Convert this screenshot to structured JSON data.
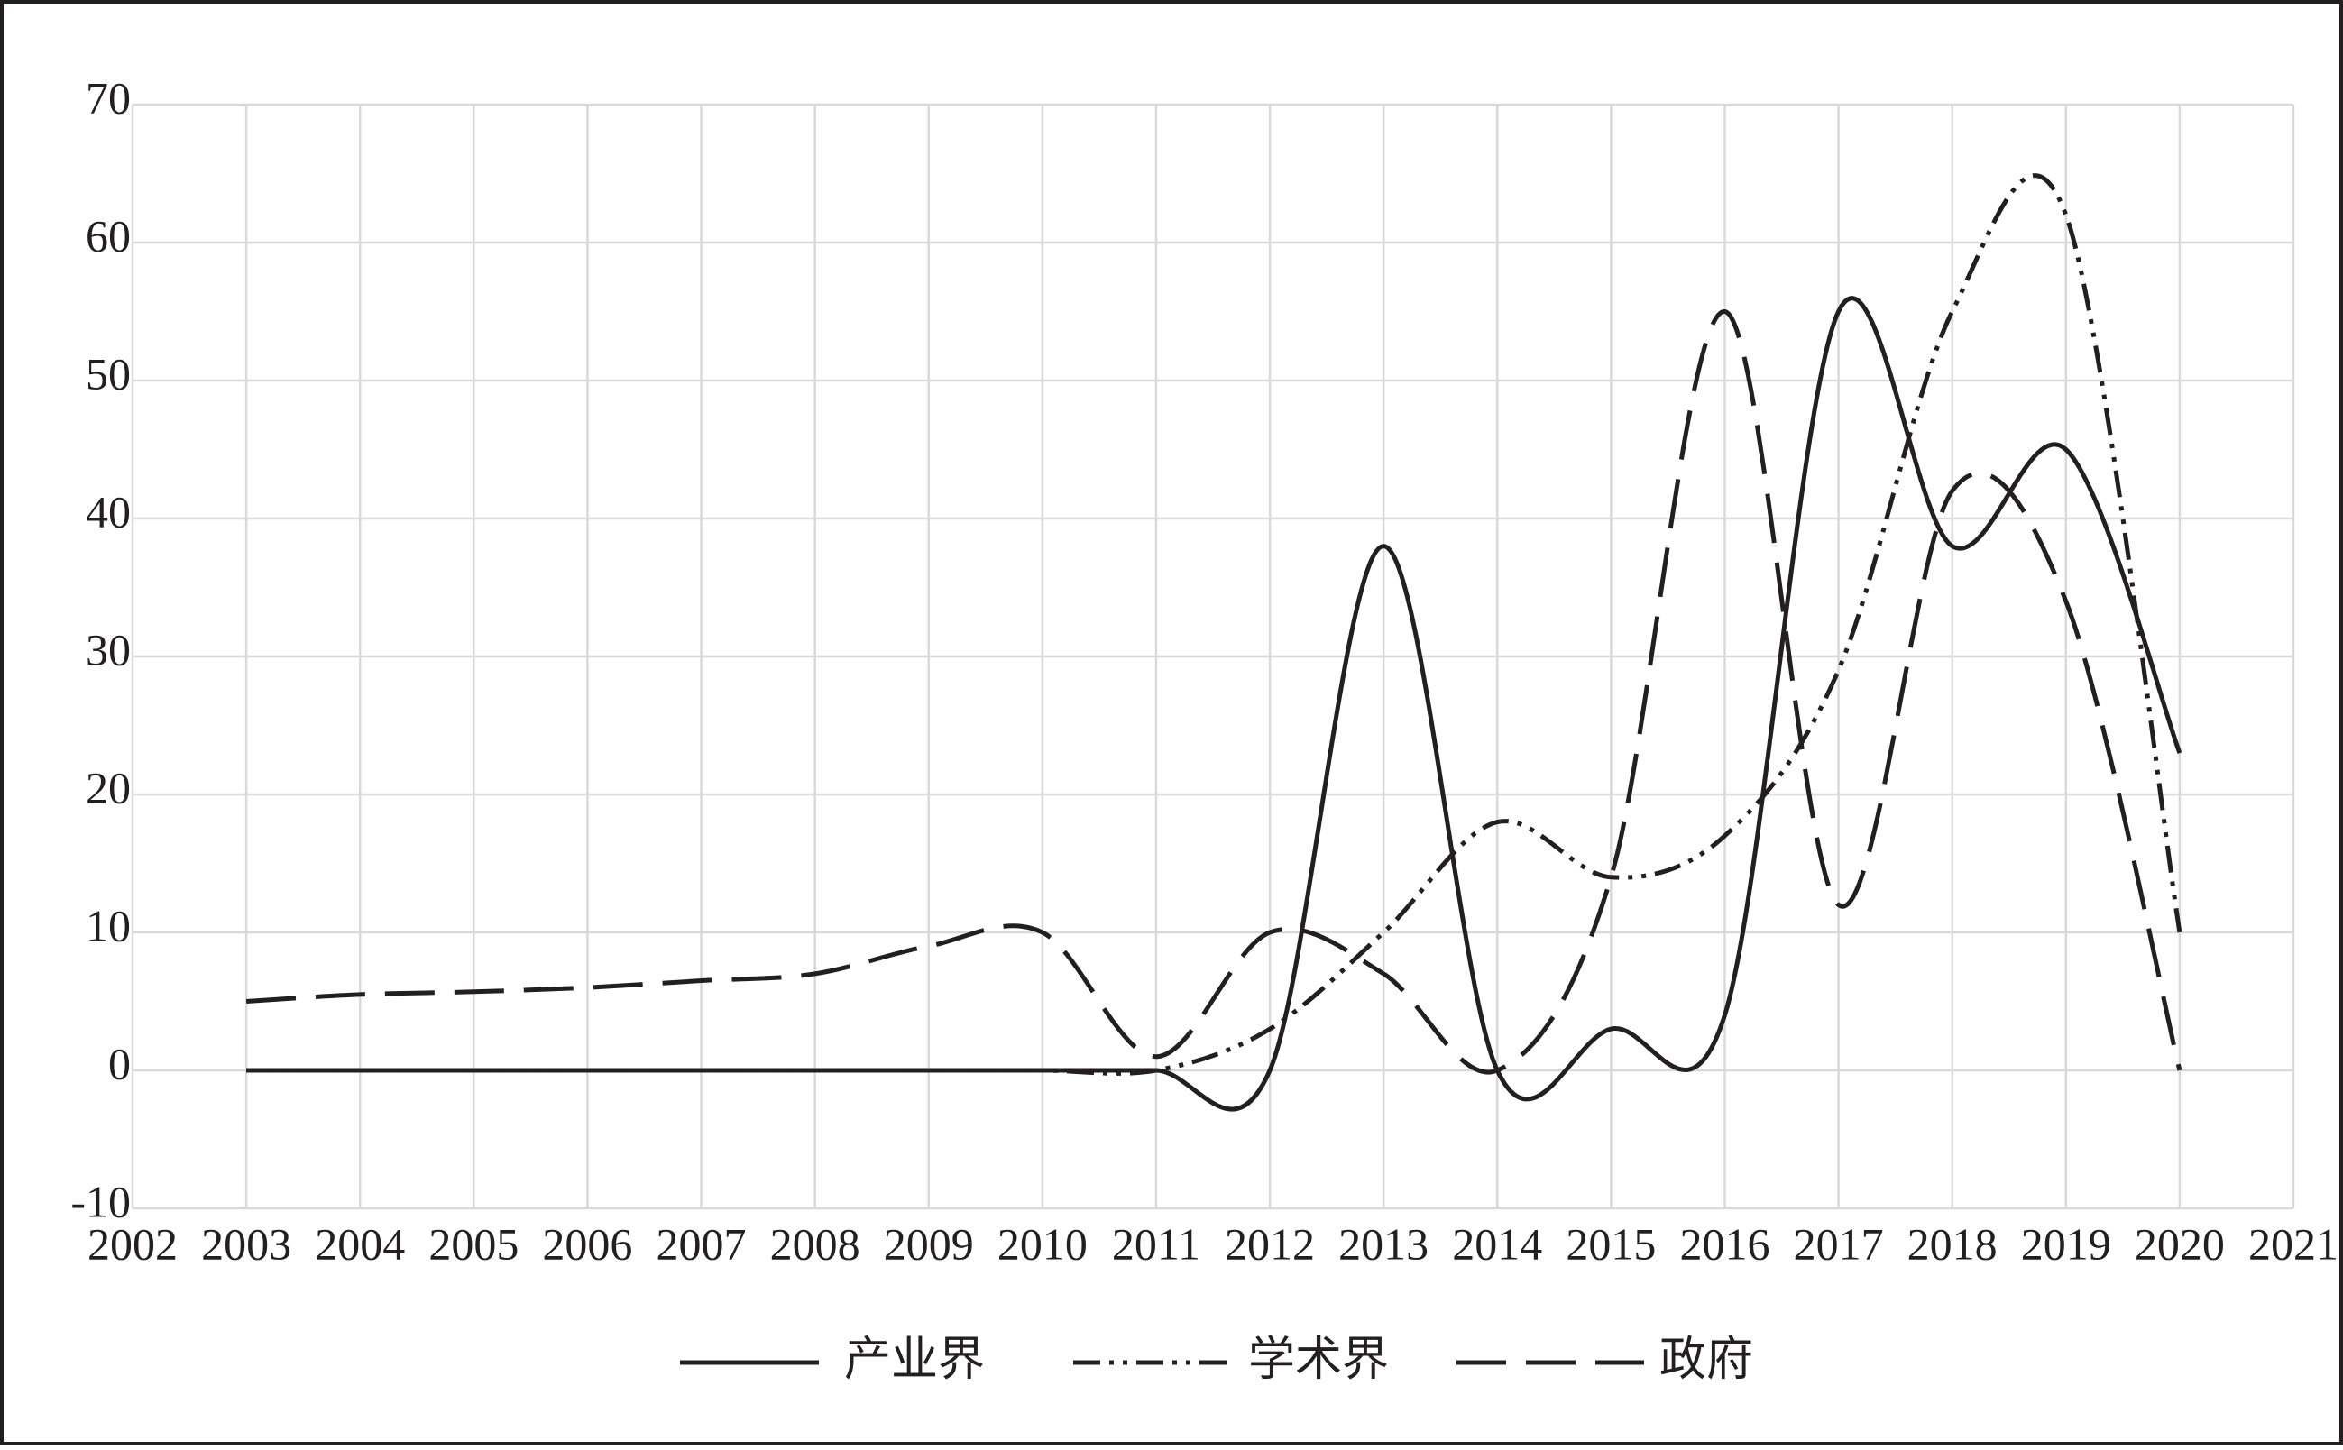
{
  "chart_data": {
    "type": "line",
    "x": [
      2003,
      2004,
      2005,
      2006,
      2007,
      2008,
      2009,
      2010,
      2011,
      2012,
      2013,
      2014,
      2015,
      2016,
      2017,
      2018,
      2019,
      2020
    ],
    "series": [
      {
        "name": "产业界",
        "color": "#231f20",
        "dash": "solid",
        "values": [
          0,
          0,
          0,
          0,
          0,
          0,
          0,
          0,
          0,
          0,
          38,
          0,
          3,
          4,
          55,
          38,
          45,
          23
        ]
      },
      {
        "name": "学术界",
        "color": "#231f20",
        "dash": "dash-dot-dot",
        "values": [
          0,
          0,
          0,
          0,
          0,
          0,
          0,
          0,
          0,
          3,
          10,
          18,
          14,
          17,
          29,
          55,
          62,
          10
        ]
      },
      {
        "name": "政府",
        "color": "#231f20",
        "dash": "dashed",
        "values": [
          5,
          5.5,
          5.7,
          6,
          6.5,
          7,
          9,
          10,
          1,
          10,
          7,
          0,
          14,
          55,
          12,
          42,
          34,
          0
        ]
      }
    ],
    "xlim": [
      2002,
      2021
    ],
    "xticks": [
      2002,
      2003,
      2004,
      2005,
      2006,
      2007,
      2008,
      2009,
      2010,
      2011,
      2012,
      2013,
      2014,
      2015,
      2016,
      2017,
      2018,
      2019,
      2020,
      2021
    ],
    "ylim": [
      -10,
      70
    ],
    "yticks": [
      -10,
      0,
      10,
      20,
      30,
      40,
      50,
      60,
      70
    ],
    "grid": true,
    "legend": "bottom"
  }
}
